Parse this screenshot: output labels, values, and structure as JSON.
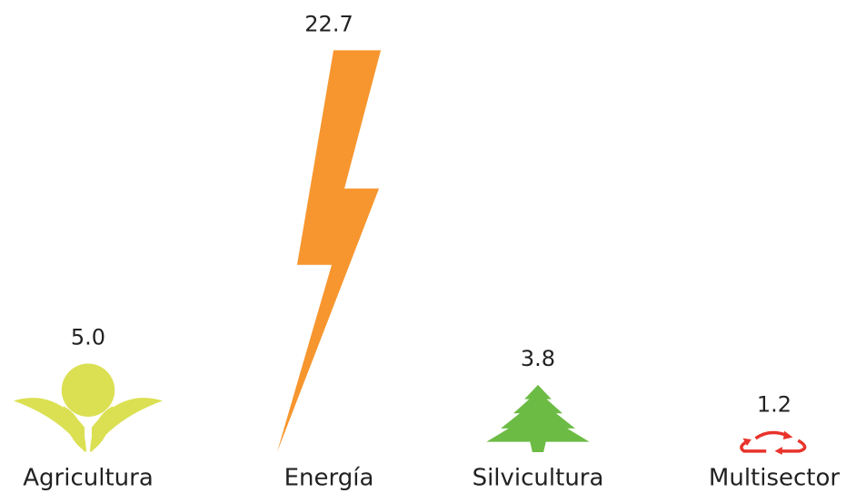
{
  "chart_data": {
    "type": "pictogram",
    "categories": [
      "Agricultura",
      "Energía",
      "Silvicultura",
      "Multisector"
    ],
    "values": [
      5.0,
      22.7,
      3.8,
      1.2
    ],
    "value_labels": [
      "5.0",
      "22.7",
      "3.8",
      "1.2"
    ],
    "colors": [
      "#dbe053",
      "#f7962f",
      "#6cbb45",
      "#e8332b"
    ]
  }
}
